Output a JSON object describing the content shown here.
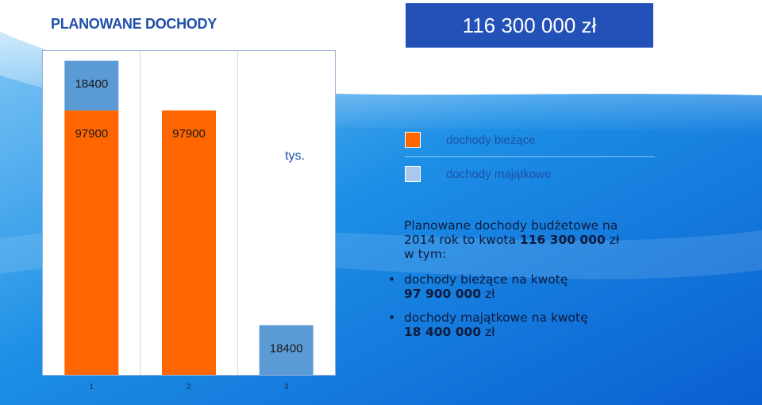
{
  "title": "PLANOWANE DOCHODY",
  "total_amount": "116 300 000 zł",
  "colors": {
    "current": "#ff6600",
    "capital": "#5b9bd5",
    "accent": "#2451b7"
  },
  "chart_data": {
    "type": "bar",
    "stacked": true,
    "categories": [
      "1",
      "2",
      "3"
    ],
    "unit_label": "tys.",
    "ylim": [
      0,
      120000
    ],
    "series": [
      {
        "name": "dochody bieżące",
        "values": [
          97900,
          97900,
          0
        ],
        "labels": [
          "97900",
          "97900",
          ""
        ],
        "color": "#ff6600"
      },
      {
        "name": "dochody majątkowe",
        "values": [
          18400,
          0,
          18400
        ],
        "labels": [
          "18400",
          "",
          "18400"
        ],
        "color": "#5b9bd5"
      }
    ]
  },
  "legend": [
    {
      "label": "dochody bieżące",
      "color": "#ff6600"
    },
    {
      "label": "dochody majątkowe",
      "color": "#a9c8ec"
    }
  ],
  "description": {
    "line1": "Planowane dochody budżetowe na",
    "line2_prefix": "2014 rok to kwota ",
    "line2_bold": "116 300 000",
    "line2_suffix": " zł",
    "line3": "w tym:",
    "bullets": [
      {
        "text": "dochody bieżące na kwotę",
        "amount": "97 900 000",
        "currency": "zł"
      },
      {
        "text": "dochody majątkowe na kwotę",
        "amount": "18 400 000",
        "currency": "zł"
      }
    ]
  }
}
